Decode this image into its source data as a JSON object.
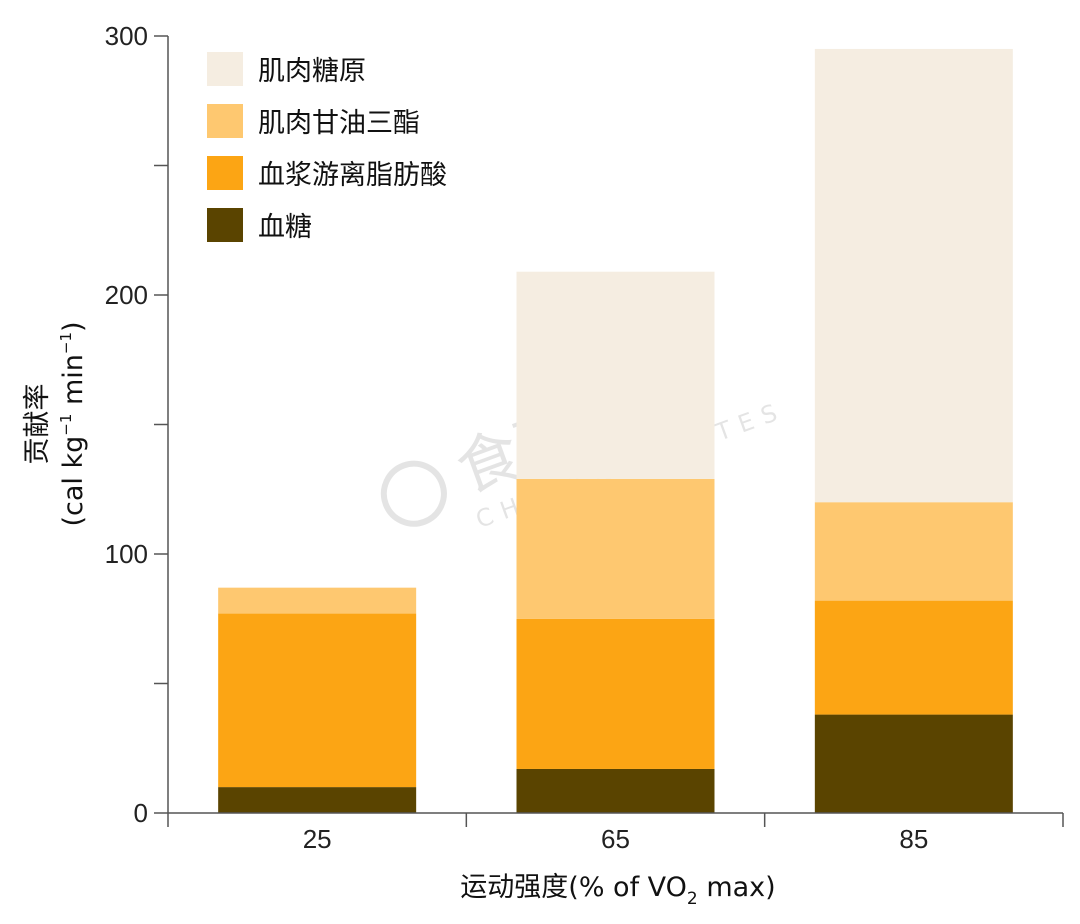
{
  "chart_data": {
    "type": "bar",
    "stacked": true,
    "categories": [
      "25",
      "65",
      "85"
    ],
    "series": [
      {
        "name": "血糖",
        "color": "#5a4400",
        "values": [
          10,
          17,
          38
        ]
      },
      {
        "name": "血浆游离脂肪酸",
        "color": "#fca514",
        "values": [
          67,
          58,
          44
        ]
      },
      {
        "name": "肌肉甘油三酯",
        "color": "#fec870",
        "values": [
          10,
          54,
          38
        ]
      },
      {
        "name": "肌肉糖原",
        "color": "#f5ede1",
        "values": [
          0,
          80,
          175
        ]
      }
    ],
    "ylim": [
      0,
      300
    ],
    "yticks": [
      0,
      100,
      200,
      300
    ],
    "ylabel_line1": "贡献率",
    "ylabel_line2_parts": {
      "base": "(cal kg",
      "sup1": "−1",
      "mid": " min",
      "sup2": "−1",
      "end": ")"
    },
    "xlabel_parts": {
      "base": "运动强度(% of VO",
      "sub": "2",
      "end": " max)"
    },
    "legend_order": [
      "肌肉糖原",
      "肌肉甘油三酯",
      "血浆游离脂肪酸",
      "血糖"
    ],
    "legend_position": "top-left",
    "grid": false
  },
  "watermark": {
    "text_cn": "食栗派",
    "text_en": "CHESTNUTMATES"
  }
}
